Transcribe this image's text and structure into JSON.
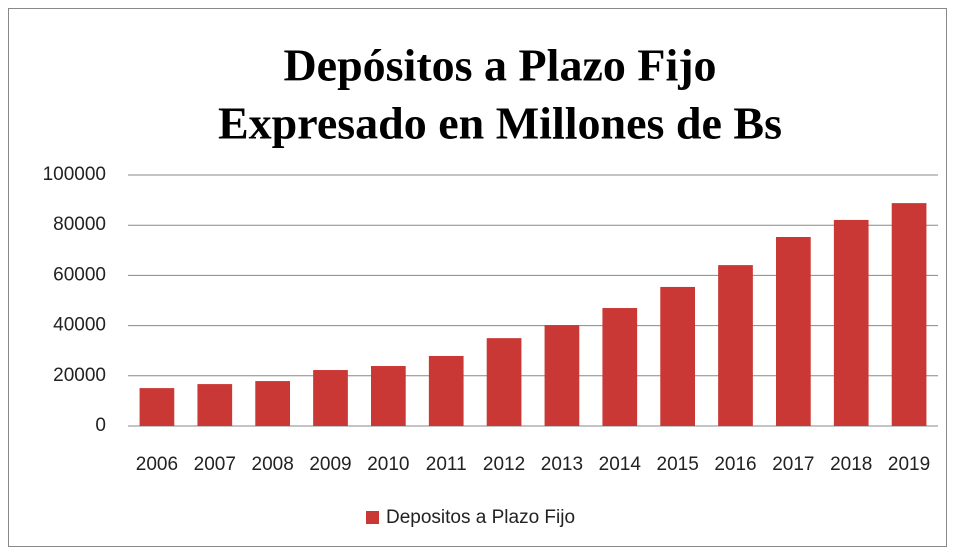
{
  "chart_data": {
    "type": "bar",
    "title": "Depósitos a Plazo Fijo",
    "subtitle": "Expresado en Millones de Bs",
    "categories": [
      "2006",
      "2007",
      "2008",
      "2009",
      "2010",
      "2011",
      "2012",
      "2013",
      "2014",
      "2015",
      "2016",
      "2017",
      "2018",
      "2019"
    ],
    "series": [
      {
        "name": "Depositos a Plazo Fijo",
        "color": "#c93835",
        "values": [
          15100,
          16700,
          17900,
          22300,
          23900,
          27900,
          35000,
          40200,
          47000,
          55400,
          64100,
          75300,
          82100,
          88800
        ]
      }
    ],
    "ylim": [
      0,
      100000
    ],
    "yticks": [
      0,
      20000,
      40000,
      60000,
      80000,
      100000
    ],
    "grid": true,
    "legend": "bottom"
  }
}
